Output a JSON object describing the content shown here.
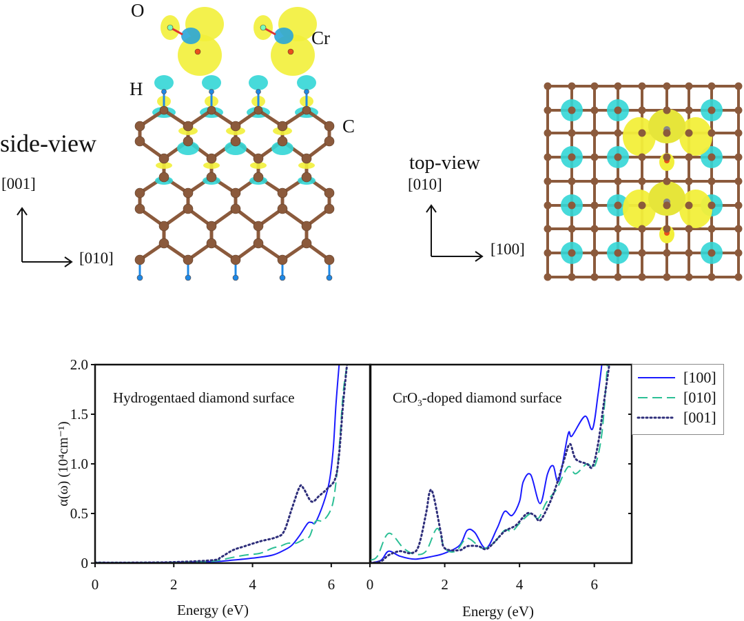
{
  "structure": {
    "side_view": {
      "title": "side-view",
      "axis_up": "[001]",
      "axis_right": "[010]",
      "atom_labels": {
        "O": "O",
        "Cr": "Cr",
        "H": "H",
        "C": "C"
      }
    },
    "top_view": {
      "title": "top-view",
      "axis_up": "[010]",
      "axis_right": "[100]"
    },
    "colors": {
      "carbon": "#8b5a3c",
      "hydrogen": "#1e88e5",
      "charge_positive": "#f2ef3a",
      "charge_negative": "#33d6d6",
      "oxygen": "#e8501c"
    }
  },
  "chart_data": [
    {
      "type": "line",
      "title": "Hydrogentaed diamond surface",
      "xlabel": "Energy (eV)",
      "ylabel": "α(ω) (10⁴cm⁻¹)",
      "ylabel_parts": {
        "main": "α(ω) (10",
        "sup1": "4",
        "mid": "cm",
        "sup2": "-1",
        "end": ")"
      },
      "xlim": [
        0,
        7
      ],
      "ylim": [
        0,
        2.0
      ],
      "xticks": [
        "0",
        "2",
        "4",
        "6"
      ],
      "yticks": [
        "0",
        "0.5",
        "1.0",
        "1.5",
        "2.0"
      ],
      "grid": false,
      "series": [
        {
          "name": "[100]",
          "color": "#1a1aff",
          "style": "solid",
          "points": [
            [
              0,
              0.005
            ],
            [
              1,
              0.005
            ],
            [
              2,
              0.008
            ],
            [
              3,
              0.015
            ],
            [
              3.5,
              0.03
            ],
            [
              4,
              0.05
            ],
            [
              4.5,
              0.08
            ],
            [
              4.8,
              0.13
            ],
            [
              5,
              0.18
            ],
            [
              5.2,
              0.28
            ],
            [
              5.4,
              0.4
            ],
            [
              5.5,
              0.41
            ],
            [
              5.6,
              0.41
            ],
            [
              5.8,
              0.6
            ],
            [
              5.95,
              0.82
            ],
            [
              6.05,
              1.15
            ],
            [
              6.12,
              1.6
            ],
            [
              6.2,
              2.0
            ]
          ]
        },
        {
          "name": "[010]",
          "color": "#2bbf95",
          "style": "dashed",
          "points": [
            [
              0,
              0.005
            ],
            [
              1,
              0.005
            ],
            [
              2,
              0.008
            ],
            [
              3,
              0.02
            ],
            [
              3.4,
              0.05
            ],
            [
              3.8,
              0.08
            ],
            [
              4.2,
              0.1
            ],
            [
              4.5,
              0.15
            ],
            [
              4.7,
              0.17
            ],
            [
              4.9,
              0.2
            ],
            [
              5.1,
              0.2
            ],
            [
              5.3,
              0.24
            ],
            [
              5.45,
              0.27
            ],
            [
              5.6,
              0.42
            ],
            [
              5.8,
              0.43
            ],
            [
              6.0,
              0.55
            ],
            [
              6.1,
              0.75
            ],
            [
              6.2,
              1.15
            ],
            [
              6.3,
              1.7
            ],
            [
              6.4,
              2.0
            ]
          ]
        },
        {
          "name": "[001]",
          "color": "#2e2e7a",
          "style": "dotted",
          "points": [
            [
              0,
              0.005
            ],
            [
              1,
              0.005
            ],
            [
              2,
              0.01
            ],
            [
              3,
              0.03
            ],
            [
              3.2,
              0.06
            ],
            [
              3.5,
              0.13
            ],
            [
              3.8,
              0.17
            ],
            [
              4.2,
              0.22
            ],
            [
              4.6,
              0.26
            ],
            [
              4.8,
              0.32
            ],
            [
              5.0,
              0.55
            ],
            [
              5.2,
              0.77
            ],
            [
              5.3,
              0.75
            ],
            [
              5.5,
              0.62
            ],
            [
              5.7,
              0.68
            ],
            [
              5.9,
              0.75
            ],
            [
              6.1,
              0.85
            ],
            [
              6.2,
              1.1
            ],
            [
              6.3,
              1.6
            ],
            [
              6.4,
              2.0
            ]
          ]
        }
      ]
    },
    {
      "type": "line",
      "title": "CrO₃-doped diamond surface",
      "title_parts": {
        "pre": "CrO",
        "sub": "3",
        "post": "-doped diamond surface"
      },
      "xlabel": "Energy (eV)",
      "xlim": [
        0,
        7
      ],
      "ylim": [
        0,
        2.0
      ],
      "xticks": [
        "0",
        "2",
        "4",
        "6"
      ],
      "grid": false,
      "legend": {
        "placement": "outside-right-top",
        "entries": [
          "[100]",
          "[010]",
          "[001]"
        ]
      },
      "series": [
        {
          "name": "[100]",
          "color": "#1a1aff",
          "style": "solid",
          "points": [
            [
              0,
              0.0
            ],
            [
              0.3,
              0.03
            ],
            [
              0.5,
              0.12
            ],
            [
              0.8,
              0.07
            ],
            [
              1.2,
              0.04
            ],
            [
              1.7,
              0.07
            ],
            [
              2.0,
              0.1
            ],
            [
              2.4,
              0.18
            ],
            [
              2.6,
              0.33
            ],
            [
              2.8,
              0.31
            ],
            [
              3.1,
              0.15
            ],
            [
              3.4,
              0.35
            ],
            [
              3.6,
              0.52
            ],
            [
              3.8,
              0.48
            ],
            [
              4.0,
              0.62
            ],
            [
              4.1,
              0.82
            ],
            [
              4.3,
              0.89
            ],
            [
              4.55,
              0.6
            ],
            [
              4.75,
              0.9
            ],
            [
              4.9,
              0.98
            ],
            [
              5.05,
              0.83
            ],
            [
              5.3,
              1.3
            ],
            [
              5.4,
              1.28
            ],
            [
              5.75,
              1.48
            ],
            [
              5.95,
              1.35
            ],
            [
              6.1,
              1.7
            ],
            [
              6.2,
              2.0
            ]
          ]
        },
        {
          "name": "[010]",
          "color": "#2bbf95",
          "style": "dashed",
          "points": [
            [
              0,
              0.03
            ],
            [
              0.2,
              0.07
            ],
            [
              0.5,
              0.3
            ],
            [
              0.9,
              0.15
            ],
            [
              1.2,
              0.09
            ],
            [
              1.5,
              0.12
            ],
            [
              1.8,
              0.35
            ],
            [
              2.0,
              0.15
            ],
            [
              2.3,
              0.12
            ],
            [
              2.6,
              0.25
            ],
            [
              3.0,
              0.15
            ],
            [
              3.3,
              0.2
            ],
            [
              3.6,
              0.33
            ],
            [
              3.8,
              0.32
            ],
            [
              4.0,
              0.4
            ],
            [
              4.3,
              0.5
            ],
            [
              4.5,
              0.45
            ],
            [
              4.7,
              0.6
            ],
            [
              4.9,
              0.7
            ],
            [
              5.0,
              0.75
            ],
            [
              5.3,
              0.97
            ],
            [
              5.5,
              0.9
            ],
            [
              5.8,
              1.0
            ],
            [
              6.0,
              0.97
            ],
            [
              6.2,
              1.3
            ],
            [
              6.35,
              2.0
            ]
          ]
        },
        {
          "name": "[001]",
          "color": "#2e2e7a",
          "style": "dotted",
          "points": [
            [
              0,
              0.0
            ],
            [
              0.3,
              0.02
            ],
            [
              0.5,
              0.08
            ],
            [
              0.8,
              0.12
            ],
            [
              1.1,
              0.1
            ],
            [
              1.3,
              0.17
            ],
            [
              1.5,
              0.5
            ],
            [
              1.6,
              0.72
            ],
            [
              1.7,
              0.68
            ],
            [
              1.9,
              0.3
            ],
            [
              2.0,
              0.15
            ],
            [
              2.4,
              0.13
            ],
            [
              2.6,
              0.17
            ],
            [
              2.9,
              0.17
            ],
            [
              3.1,
              0.14
            ],
            [
              3.3,
              0.2
            ],
            [
              3.6,
              0.32
            ],
            [
              3.9,
              0.38
            ],
            [
              4.2,
              0.5
            ],
            [
              4.4,
              0.48
            ],
            [
              4.55,
              0.43
            ],
            [
              4.8,
              0.6
            ],
            [
              5.0,
              0.8
            ],
            [
              5.2,
              1.05
            ],
            [
              5.35,
              1.2
            ],
            [
              5.5,
              1.05
            ],
            [
              5.8,
              1.0
            ],
            [
              5.95,
              0.97
            ],
            [
              6.1,
              1.2
            ],
            [
              6.25,
              1.6
            ],
            [
              6.4,
              2.0
            ]
          ]
        }
      ]
    }
  ]
}
